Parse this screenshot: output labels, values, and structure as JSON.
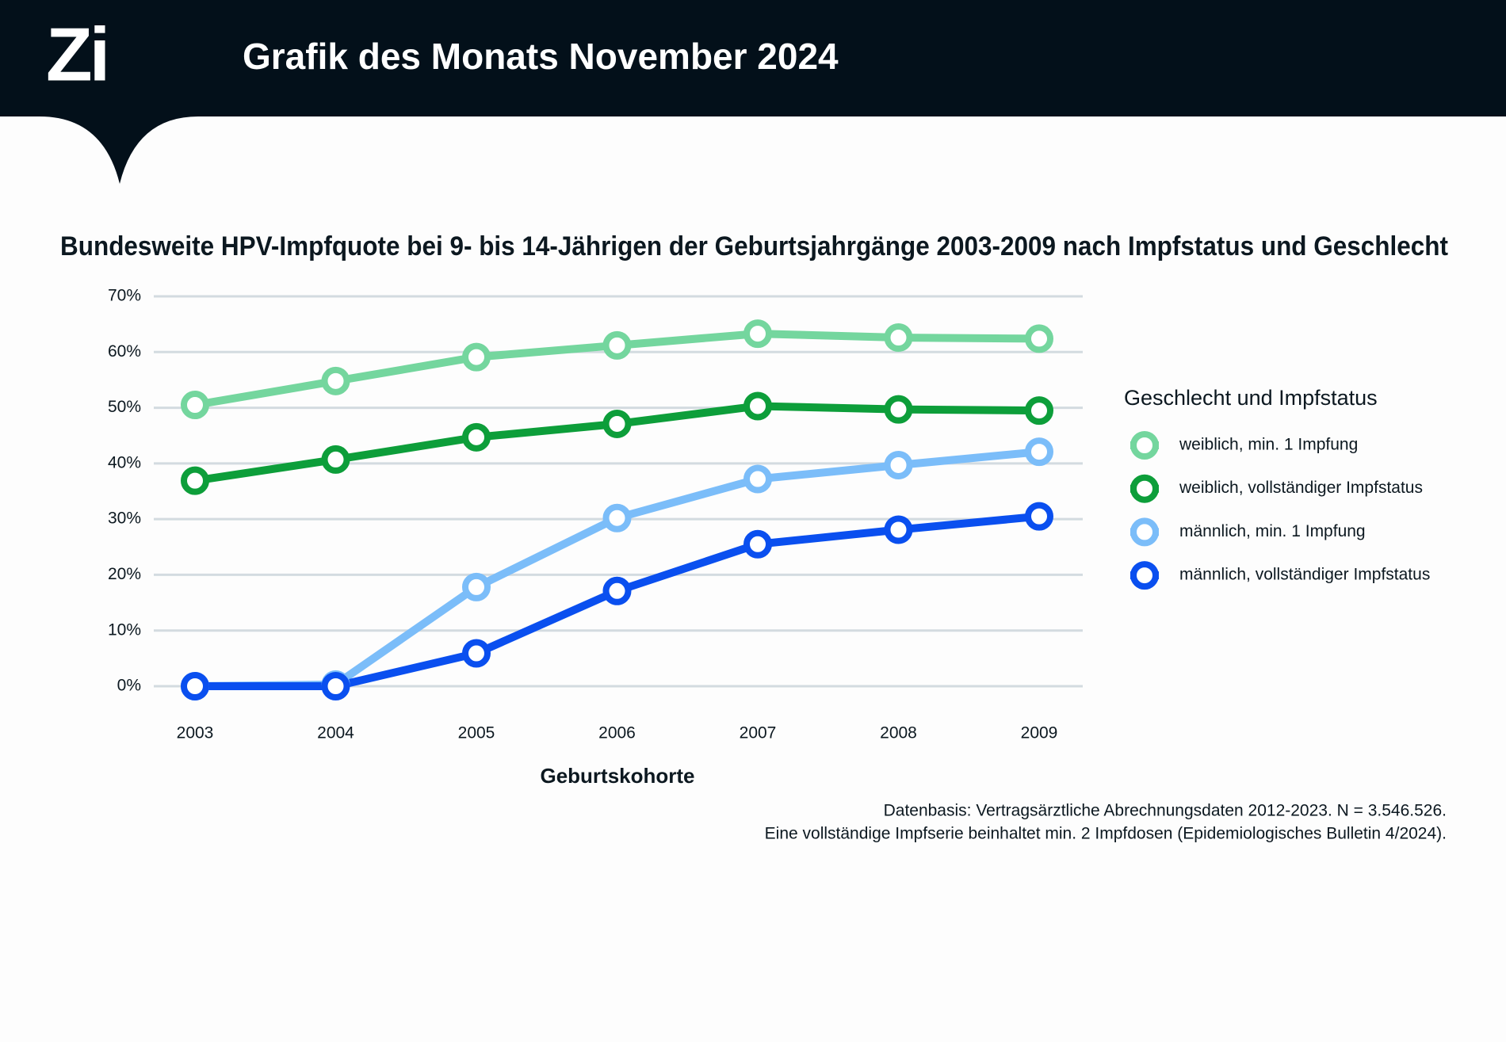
{
  "header": {
    "logo": "Zi",
    "title": "Grafik des Monats November 2024"
  },
  "chart_data": {
    "type": "line",
    "title": "Bundesweite HPV-Impfquote bei 9- bis 14-Jährigen der Geburtsjahrgänge 2003-2009 nach Impfstatus und Geschlecht",
    "x_label": "Geburtskohorte",
    "legend_title": "Geschlecht und Impfstatus",
    "legend_position": "right",
    "categories": [
      "2003",
      "2004",
      "2005",
      "2006",
      "2007",
      "2008",
      "2009"
    ],
    "series": [
      {
        "name": "weiblich, min. 1 Impfung",
        "color": "#74d69e",
        "values": [
          50.5,
          54.8,
          59.1,
          61.2,
          63.3,
          62.6,
          62.4
        ]
      },
      {
        "name": "weiblich, vollständiger Impfstatus",
        "color": "#0d9e3a",
        "values": [
          36.9,
          40.7,
          44.7,
          47.1,
          50.3,
          49.7,
          49.5
        ]
      },
      {
        "name": "männlich, min. 1 Impfung",
        "color": "#7bbdf9",
        "values": [
          0,
          0.3,
          17.8,
          30.2,
          37.2,
          39.7,
          42.1
        ]
      },
      {
        "name": "männlich, vollständiger Impfstatus",
        "color": "#0a4fef",
        "values": [
          0,
          0,
          5.9,
          17.1,
          25.5,
          28.1,
          30.5
        ]
      }
    ],
    "ylim": [
      0,
      70
    ],
    "yticks": [
      {
        "value": 0,
        "label": "0%"
      },
      {
        "value": 10,
        "label": "10%"
      },
      {
        "value": 20,
        "label": "20%"
      },
      {
        "value": 30,
        "label": "30%"
      },
      {
        "value": 40,
        "label": "40%"
      },
      {
        "value": 50,
        "label": "50%"
      },
      {
        "value": 60,
        "label": "60%"
      },
      {
        "value": 70,
        "label": "70%"
      }
    ],
    "grid": true,
    "notes": [
      "Datenbasis: Vertragsärztliche Abrechnungsdaten 2012-2023. N = 3.546.526.",
      "Eine vollständige Impfserie beinhaltet min. 2 Impfdosen (Epidemiologisches Bulletin 4/2024)."
    ]
  }
}
